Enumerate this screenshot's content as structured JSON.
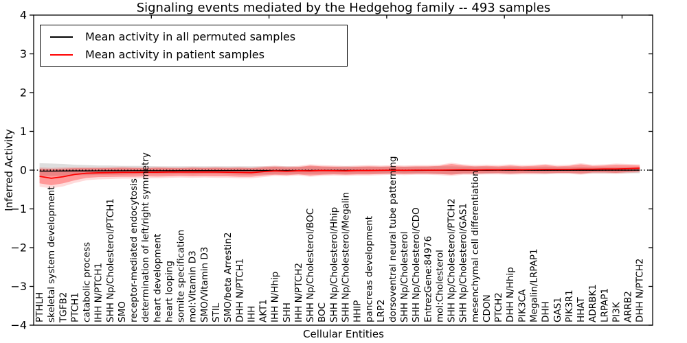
{
  "figure": {
    "title": "Signaling events mediated by the Hedgehog family -- 493 samples",
    "xlabel": "Cellular Entities",
    "ylabel": "Inferred Activity",
    "sample_count": "493"
  },
  "legend": {
    "entries": [
      {
        "label": "Mean activity in all permuted samples",
        "color": "#000000"
      },
      {
        "label": "Mean activity in patient samples",
        "color": "#ff0000"
      }
    ]
  },
  "chart_data": {
    "type": "line",
    "title": "Signaling events mediated by the Hedgehog family -- 493 samples",
    "xlabel": "Cellular Entities",
    "ylabel": "Inferred Activity",
    "ylim": [
      -4,
      4
    ],
    "yticks": [
      4,
      3,
      2,
      1,
      0,
      -1,
      -2,
      -3,
      -4
    ],
    "top_ticks": [
      10,
      20,
      30,
      40,
      50
    ],
    "grid": false,
    "legend_position": "upper left",
    "x_tick_rotation": 90,
    "categories": [
      "PTHLH",
      "skeletal system development",
      "TGFB2",
      "PTCH1",
      "catabolic process",
      "IHH N/PTCH1",
      "SHH Np/Cholesterol/PTCH1",
      "SMO",
      "receptor-mediated endocytosis",
      "determination of left/right symmetry",
      "heart development",
      "heart looping",
      "somite specification",
      "mol:Vitamin D3",
      "SMO/Vitamin D3",
      "STIL",
      "SMO/beta Arrestin2",
      "DHH N/PTCH1",
      "IHH",
      "AKT1",
      "IHH N/Hhip",
      "SHH",
      "IHH N/PTCH2",
      "SHH Np/Cholesterol/BOC",
      "BOC",
      "SHH Np/Cholesterol/Hhip",
      "SHH Np/Cholesterol/Megalin",
      "HHIP",
      "pancreas development",
      "LRP2",
      "dorsoventral neural tube patterning",
      "SHH Np/Cholesterol",
      "SHH Np/Cholesterol/CDO",
      "EntrezGene:84976",
      "mol:Cholesterol",
      "SHH Np/Cholesterol/PTCH2",
      "SHH Np/Cholesterol/GAS1",
      "mesenchymal cell differentiation",
      "CDON",
      "PTCH2",
      "DHH N/Hhip",
      "PIK3CA",
      "Megalin/LRPAP1",
      "DHH",
      "GAS1",
      "PIK3R1",
      "HHAT",
      "ADRBK1",
      "LRPAP1",
      "PI3K",
      "ARRB2",
      "DHH N/PTCH2"
    ],
    "series": [
      {
        "name": "Mean activity in all permuted samples",
        "color": "#000000",
        "values": [
          -0.025,
          -0.025,
          -0.022,
          -0.02,
          -0.02,
          -0.018,
          -0.016,
          -0.016,
          -0.015,
          -0.015,
          -0.014,
          -0.014,
          -0.013,
          -0.013,
          -0.012,
          -0.012,
          -0.012,
          -0.011,
          -0.011,
          -0.011,
          -0.01,
          -0.01,
          -0.01,
          -0.01,
          -0.009,
          -0.009,
          -0.009,
          -0.008,
          -0.008,
          -0.008,
          -0.007,
          -0.007,
          -0.007,
          -0.006,
          -0.006,
          -0.006,
          -0.005,
          -0.005,
          -0.005,
          -0.004,
          -0.004,
          -0.004,
          -0.003,
          -0.003,
          -0.003,
          -0.002,
          -0.002,
          -0.002,
          -0.001,
          -0.001,
          -0.001,
          0.0
        ]
      },
      {
        "name": "Mean activity in patient samples",
        "color": "#ff0000",
        "values": [
          -0.16,
          -0.21,
          -0.17,
          -0.11,
          -0.08,
          -0.07,
          -0.065,
          -0.06,
          -0.06,
          -0.055,
          -0.055,
          -0.05,
          -0.05,
          -0.05,
          -0.05,
          -0.05,
          -0.055,
          -0.06,
          -0.065,
          -0.04,
          -0.02,
          -0.03,
          -0.015,
          -0.02,
          -0.01,
          -0.015,
          -0.02,
          -0.01,
          -0.01,
          -0.005,
          0.0,
          -0.005,
          0.0,
          0.0,
          0.0,
          0.005,
          0.01,
          0.005,
          0.01,
          0.01,
          0.015,
          0.01,
          0.015,
          0.02,
          0.02,
          0.02,
          0.025,
          0.025,
          0.03,
          0.03,
          0.04,
          0.05
        ]
      }
    ],
    "bands": [
      {
        "name": "permuted-range",
        "color": "#999999",
        "opacity": 0.32,
        "upper": [
          0.18,
          0.17,
          0.16,
          0.14,
          0.13,
          0.12,
          0.12,
          0.11,
          0.11,
          0.11,
          0.1,
          0.1,
          0.1,
          0.1,
          0.1,
          0.1,
          0.1,
          0.1,
          0.1,
          0.1,
          0.1,
          0.1,
          0.09,
          0.1,
          0.09,
          0.09,
          0.1,
          0.09,
          0.09,
          0.09,
          0.09,
          0.09,
          0.09,
          0.09,
          0.1,
          0.1,
          0.09,
          0.09,
          0.09,
          0.08,
          0.09,
          0.08,
          0.08,
          0.09,
          0.08,
          0.08,
          0.09,
          0.08,
          0.08,
          0.08,
          0.08,
          0.08
        ],
        "lower": [
          -0.14,
          -0.15,
          -0.14,
          -0.13,
          -0.13,
          -0.12,
          -0.12,
          -0.12,
          -0.11,
          -0.11,
          -0.11,
          -0.11,
          -0.1,
          -0.11,
          -0.1,
          -0.1,
          -0.11,
          -0.12,
          -0.12,
          -0.11,
          -0.1,
          -0.1,
          -0.1,
          -0.1,
          -0.1,
          -0.09,
          -0.1,
          -0.09,
          -0.09,
          -0.09,
          -0.09,
          -0.09,
          -0.09,
          -0.09,
          -0.1,
          -0.1,
          -0.09,
          -0.09,
          -0.09,
          -0.08,
          -0.09,
          -0.08,
          -0.08,
          -0.09,
          -0.08,
          -0.08,
          -0.09,
          -0.08,
          -0.08,
          -0.08,
          -0.08,
          -0.08
        ]
      },
      {
        "name": "patient-range-outer",
        "color": "#ff0000",
        "opacity": 0.14,
        "upper": [
          0.07,
          0.06,
          0.07,
          0.08,
          0.08,
          0.08,
          0.08,
          0.09,
          0.08,
          0.08,
          0.09,
          0.08,
          0.08,
          0.09,
          0.08,
          0.09,
          0.08,
          0.09,
          0.08,
          0.1,
          0.12,
          0.1,
          0.11,
          0.15,
          0.13,
          0.12,
          0.11,
          0.12,
          0.13,
          0.12,
          0.13,
          0.12,
          0.13,
          0.13,
          0.14,
          0.19,
          0.15,
          0.13,
          0.14,
          0.13,
          0.15,
          0.13,
          0.14,
          0.16,
          0.13,
          0.14,
          0.18,
          0.14,
          0.15,
          0.17,
          0.16,
          0.15
        ],
        "lower": [
          -0.43,
          -0.47,
          -0.42,
          -0.33,
          -0.26,
          -0.24,
          -0.23,
          -0.22,
          -0.22,
          -0.21,
          -0.21,
          -0.2,
          -0.19,
          -0.2,
          -0.19,
          -0.2,
          -0.2,
          -0.21,
          -0.21,
          -0.18,
          -0.15,
          -0.16,
          -0.14,
          -0.17,
          -0.15,
          -0.14,
          -0.15,
          -0.14,
          -0.14,
          -0.13,
          -0.12,
          -0.13,
          -0.12,
          -0.12,
          -0.13,
          -0.15,
          -0.12,
          -0.12,
          -0.11,
          -0.11,
          -0.12,
          -0.11,
          -0.11,
          -0.11,
          -0.1,
          -0.1,
          -0.12,
          -0.09,
          -0.09,
          -0.1,
          -0.08,
          -0.06
        ]
      },
      {
        "name": "patient-range-inner",
        "color": "#ff0000",
        "opacity": 0.3,
        "upper": [
          0.04,
          0.03,
          0.04,
          0.05,
          0.05,
          0.05,
          0.055,
          0.06,
          0.055,
          0.05,
          0.06,
          0.055,
          0.05,
          0.06,
          0.055,
          0.06,
          0.055,
          0.06,
          0.05,
          0.07,
          0.09,
          0.07,
          0.08,
          0.12,
          0.1,
          0.09,
          0.08,
          0.09,
          0.1,
          0.09,
          0.1,
          0.09,
          0.1,
          0.1,
          0.11,
          0.16,
          0.12,
          0.1,
          0.11,
          0.1,
          0.12,
          0.1,
          0.11,
          0.13,
          0.1,
          0.11,
          0.15,
          0.11,
          0.12,
          0.14,
          0.13,
          0.12
        ],
        "lower": [
          -0.34,
          -0.39,
          -0.34,
          -0.26,
          -0.2,
          -0.18,
          -0.175,
          -0.17,
          -0.17,
          -0.16,
          -0.165,
          -0.16,
          -0.15,
          -0.16,
          -0.155,
          -0.16,
          -0.16,
          -0.17,
          -0.17,
          -0.14,
          -0.12,
          -0.13,
          -0.11,
          -0.14,
          -0.12,
          -0.11,
          -0.12,
          -0.11,
          -0.11,
          -0.1,
          -0.09,
          -0.1,
          -0.09,
          -0.09,
          -0.1,
          -0.12,
          -0.09,
          -0.09,
          -0.08,
          -0.08,
          -0.09,
          -0.08,
          -0.08,
          -0.08,
          -0.07,
          -0.07,
          -0.09,
          -0.06,
          -0.06,
          -0.07,
          -0.05,
          -0.03
        ]
      }
    ],
    "zero_line": {
      "style": "dotted",
      "color": "#000000",
      "y": 0
    }
  }
}
